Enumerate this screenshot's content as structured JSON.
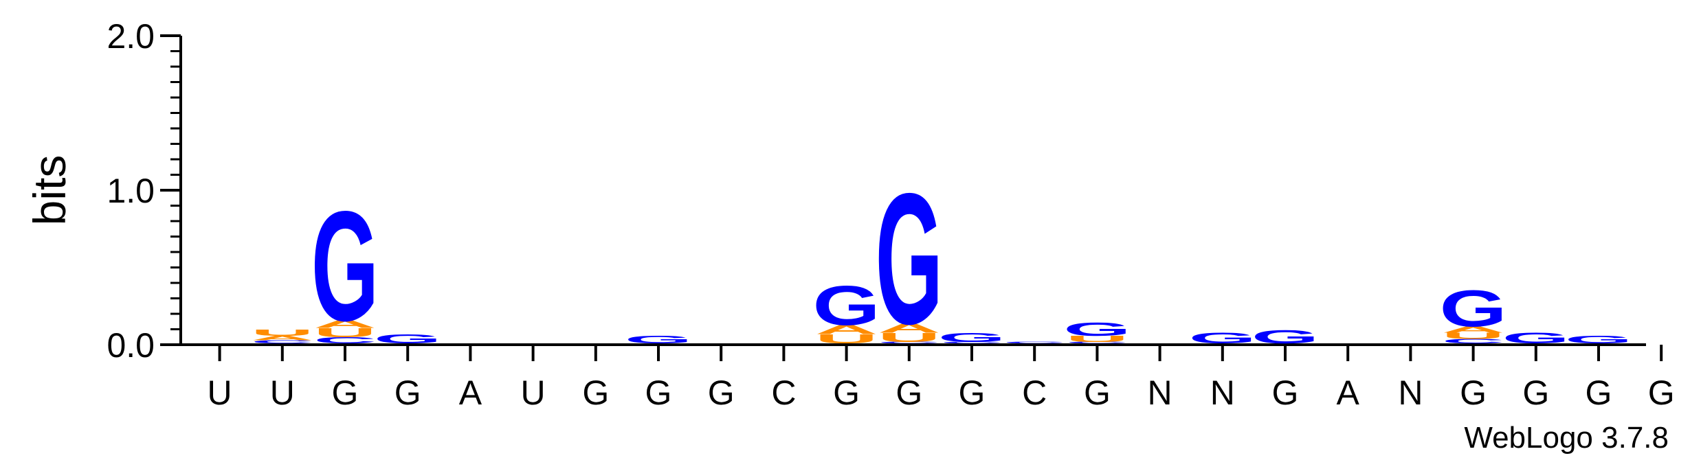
{
  "chart_data": {
    "type": "sequence-logo",
    "ylabel": "bits",
    "ylim": [
      0,
      2.0
    ],
    "yticks": [
      "0.0",
      "1.0",
      "2.0"
    ],
    "credit": "WebLogo 3.7.8",
    "colors": {
      "G": "#0000ff",
      "A": "#ff8c00",
      "U": "#ff8c00",
      "C": "#0000ff"
    },
    "positions": [
      {
        "label": "U",
        "stack": []
      },
      {
        "label": "U",
        "stack": [
          {
            "letter": "C",
            "bits": 0.02
          },
          {
            "letter": "A",
            "bits": 0.03
          },
          {
            "letter": "U",
            "bits": 0.04
          }
        ]
      },
      {
        "label": "G",
        "stack": [
          {
            "letter": "C",
            "bits": 0.04
          },
          {
            "letter": "U",
            "bits": 0.06
          },
          {
            "letter": "A",
            "bits": 0.05
          },
          {
            "letter": "G",
            "bits": 0.73
          }
        ]
      },
      {
        "label": "G",
        "stack": [
          {
            "letter": "G",
            "bits": 0.06
          }
        ]
      },
      {
        "label": "A",
        "stack": []
      },
      {
        "label": "U",
        "stack": []
      },
      {
        "label": "G",
        "stack": []
      },
      {
        "label": "G",
        "stack": [
          {
            "letter": "G",
            "bits": 0.05
          }
        ]
      },
      {
        "label": "G",
        "stack": []
      },
      {
        "label": "C",
        "stack": []
      },
      {
        "label": "G",
        "stack": [
          {
            "letter": "U",
            "bits": 0.06
          },
          {
            "letter": "A",
            "bits": 0.06
          },
          {
            "letter": "G",
            "bits": 0.26
          }
        ]
      },
      {
        "label": "G",
        "stack": [
          {
            "letter": "C",
            "bits": 0.01
          },
          {
            "letter": "U",
            "bits": 0.06
          },
          {
            "letter": "A",
            "bits": 0.06
          },
          {
            "letter": "G",
            "bits": 0.87
          }
        ]
      },
      {
        "label": "G",
        "stack": [
          {
            "letter": "C",
            "bits": 0.01
          },
          {
            "letter": "G",
            "bits": 0.06
          }
        ]
      },
      {
        "label": "C",
        "stack": [
          {
            "letter": "C",
            "bits": 0.01
          }
        ]
      },
      {
        "label": "G",
        "stack": [
          {
            "letter": "C",
            "bits": 0.01
          },
          {
            "letter": "U",
            "bits": 0.04
          },
          {
            "letter": "G",
            "bits": 0.09
          }
        ]
      },
      {
        "label": "N",
        "stack": []
      },
      {
        "label": "N",
        "stack": [
          {
            "letter": "G",
            "bits": 0.07
          }
        ]
      },
      {
        "label": "G",
        "stack": [
          {
            "letter": "G",
            "bits": 0.09
          }
        ]
      },
      {
        "label": "A",
        "stack": []
      },
      {
        "label": "N",
        "stack": []
      },
      {
        "label": "G",
        "stack": [
          {
            "letter": "C",
            "bits": 0.03
          },
          {
            "letter": "U",
            "bits": 0.04
          },
          {
            "letter": "A",
            "bits": 0.04
          },
          {
            "letter": "G",
            "bits": 0.24
          }
        ]
      },
      {
        "label": "G",
        "stack": [
          {
            "letter": "G",
            "bits": 0.07
          }
        ]
      },
      {
        "label": "G",
        "stack": [
          {
            "letter": "G",
            "bits": 0.05
          }
        ]
      },
      {
        "label": "G",
        "stack": []
      }
    ]
  }
}
